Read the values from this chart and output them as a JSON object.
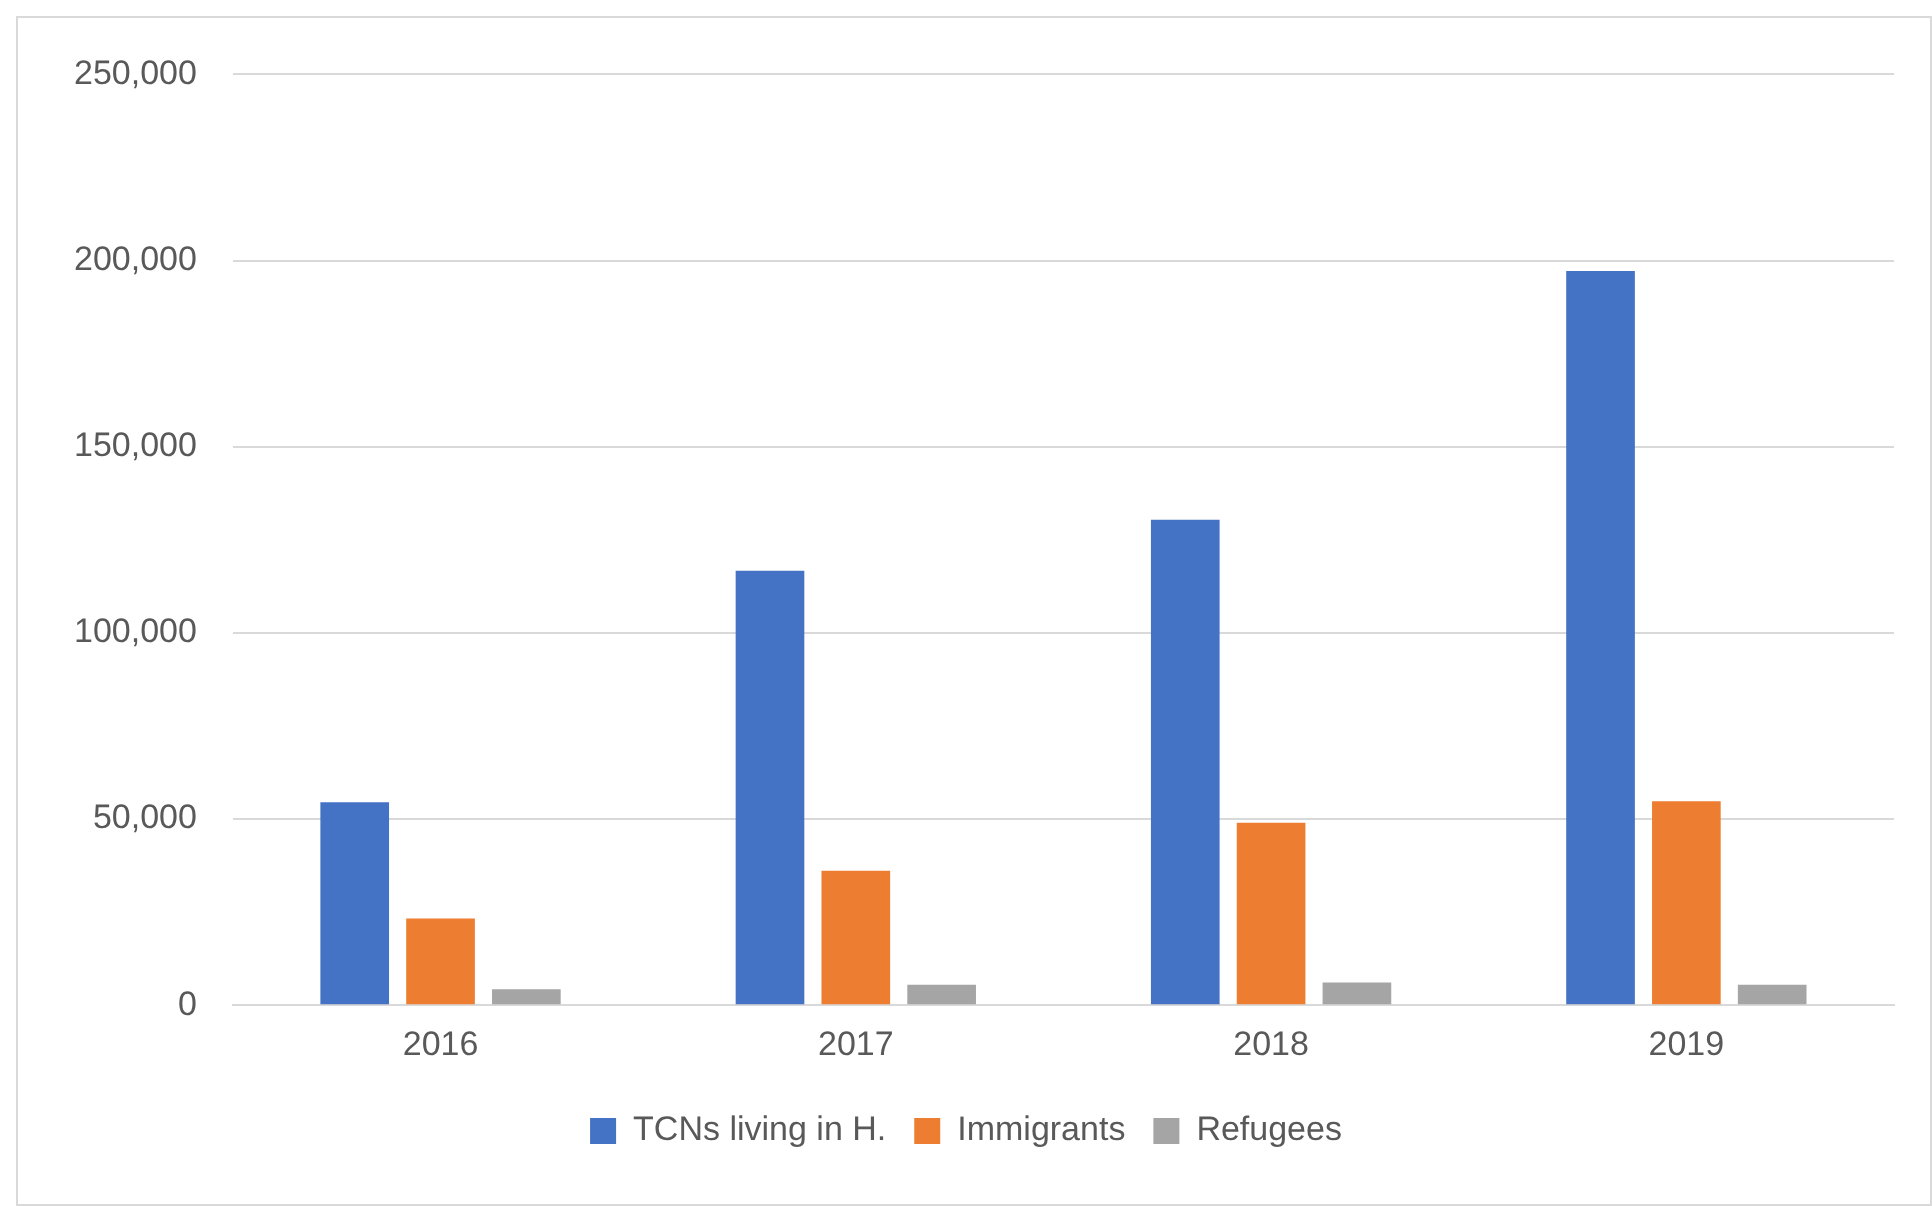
{
  "chart_data": {
    "type": "bar",
    "categories": [
      "2016",
      "2017",
      "2018",
      "2019"
    ],
    "series": [
      {
        "name": "TCNs living in H.",
        "color": "#4472c4",
        "values": [
          54500,
          116700,
          130400,
          197200
        ]
      },
      {
        "name": "Immigrants",
        "color": "#ed7d31",
        "values": [
          23300,
          36100,
          49000,
          54800
        ]
      },
      {
        "name": "Refugees",
        "color": "#a5a5a5",
        "values": [
          4300,
          5500,
          6100,
          5500
        ]
      }
    ],
    "ylim": [
      0,
      250000
    ],
    "yticks": [
      {
        "value": 0,
        "label": "0"
      },
      {
        "value": 50000,
        "label": "50,000"
      },
      {
        "value": 100000,
        "label": "100,000"
      },
      {
        "value": 150000,
        "label": "150,000"
      },
      {
        "value": 200000,
        "label": "200,000"
      },
      {
        "value": 250000,
        "label": "250,000"
      }
    ],
    "grid": "y",
    "legend": "bottom"
  }
}
